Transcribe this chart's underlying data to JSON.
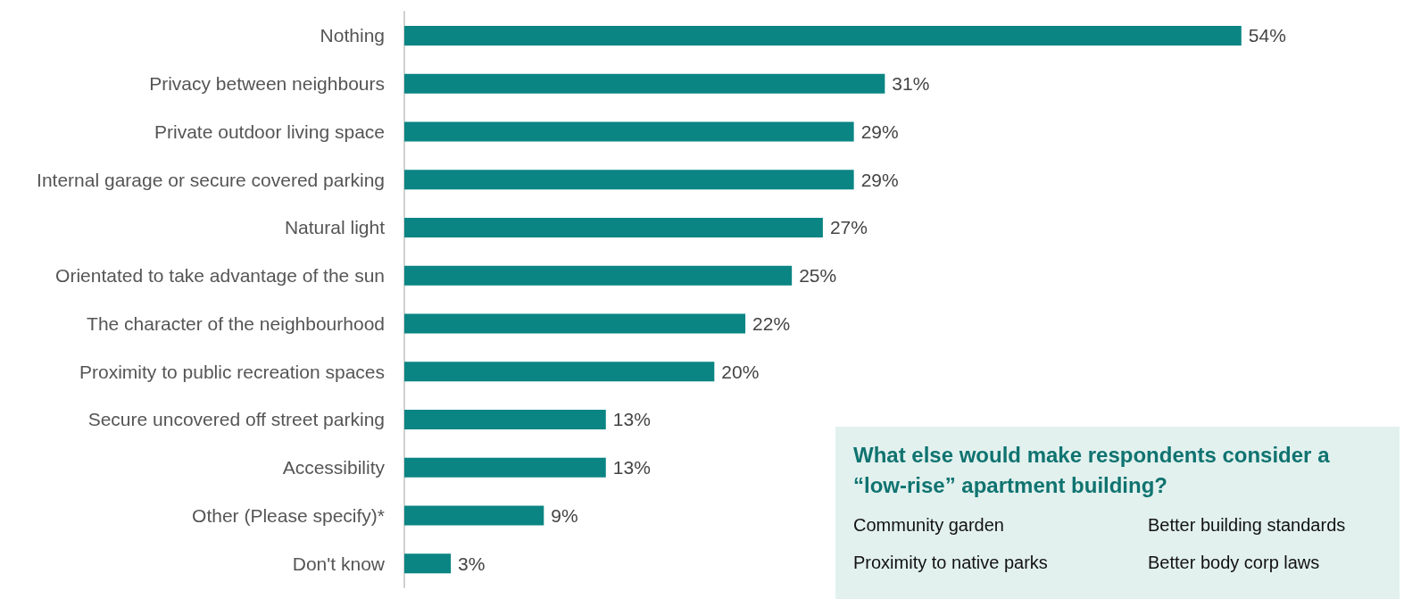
{
  "chart_data": {
    "type": "bar",
    "orientation": "horizontal",
    "color": "#0a8583",
    "categories": [
      "Nothing",
      "Privacy between neighbours",
      "Private outdoor living space",
      "Internal garage or secure covered parking",
      "Natural light",
      "Orientated to take advantage of the sun",
      "The character of the neighbourhood",
      "Proximity to public recreation spaces",
      "Secure uncovered off street parking",
      "Accessibility",
      "Other (Please specify)*",
      "Don't know"
    ],
    "values": [
      54,
      31,
      29,
      29,
      27,
      25,
      22,
      20,
      13,
      13,
      9,
      3
    ],
    "value_labels": [
      "54%",
      "31%",
      "29%",
      "29%",
      "27%",
      "25%",
      "22%",
      "20%",
      "13%",
      "13%",
      "9%",
      "3%"
    ],
    "grid": false,
    "annotations": [
      "What else would make respondents consider a “low-rise” apartment building?",
      "Community garden",
      "Better building standards",
      "Proximity to native parks",
      "Better body corp laws"
    ]
  }
}
